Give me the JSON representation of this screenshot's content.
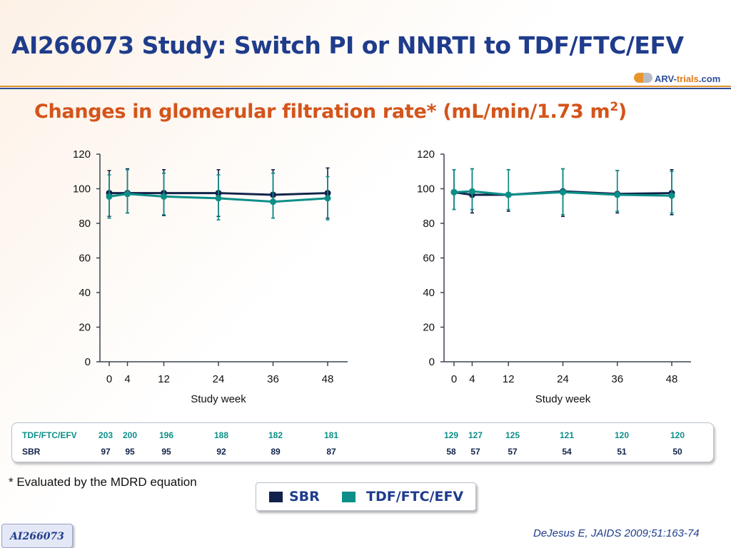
{
  "title": "AI266073 Study: Switch PI or NNRTI to TDF/FTC/EFV",
  "logo": {
    "main": "ARV-",
    "accent": "trials",
    "suffix": ".com"
  },
  "subtitle": {
    "text": "Changes in glomerular filtration rate* (mL/min/1.73 m",
    "sup": "2",
    "close": ")"
  },
  "colors": {
    "sbr": "#11234a",
    "tdf": "#0c8f88",
    "title": "#1f3c8c",
    "subtitle": "#d4541a"
  },
  "chart_data": [
    {
      "type": "line",
      "xlabel": "Study week",
      "ylabel": "",
      "ylim": [
        0,
        120
      ],
      "yticks": [
        0,
        20,
        40,
        60,
        80,
        100,
        120
      ],
      "x": [
        0,
        4,
        12,
        24,
        36,
        48
      ],
      "series": [
        {
          "name": "SBR",
          "values": [
            97.5,
            97.5,
            97.5,
            97.5,
            96.5,
            97.5
          ],
          "err_upper": [
            110.5,
            111.5,
            111,
            111,
            111,
            112
          ],
          "err_lower": [
            84,
            86,
            84.5,
            84,
            83,
            83
          ]
        },
        {
          "name": "TDF/FTC/EFV",
          "values": [
            95.5,
            97,
            95.5,
            94.5,
            92.5,
            94.5
          ],
          "err_upper": [
            108,
            111,
            109,
            108,
            109,
            107
          ],
          "err_lower": [
            83,
            86,
            85,
            82,
            83,
            82
          ]
        }
      ]
    },
    {
      "type": "line",
      "xlabel": "Study week",
      "ylabel": "",
      "ylim": [
        0,
        120
      ],
      "yticks": [
        0,
        20,
        40,
        60,
        80,
        100,
        120
      ],
      "x": [
        0,
        4,
        12,
        24,
        36,
        48
      ],
      "series": [
        {
          "name": "SBR",
          "values": [
            98,
            96.5,
            96.5,
            98.5,
            97,
            97.5
          ],
          "err_upper": [
            111,
            111.5,
            111,
            111.5,
            110.5,
            111
          ],
          "err_lower": [
            88,
            86,
            87,
            84,
            86,
            85
          ]
        },
        {
          "name": "TDF/FTC/EFV",
          "values": [
            98,
            98.5,
            96.5,
            98,
            96.5,
            96
          ],
          "err_upper": [
            111,
            111.5,
            111,
            111.5,
            110.5,
            110
          ],
          "err_lower": [
            88,
            88,
            88,
            85,
            87,
            86
          ]
        }
      ]
    }
  ],
  "n_table": {
    "rows": [
      {
        "label": "TDF/FTC/EFV",
        "left": [
          "203",
          "200",
          "196",
          "188",
          "182",
          "181"
        ],
        "right": [
          "129",
          "127",
          "125",
          "121",
          "120",
          "120"
        ]
      },
      {
        "label": "SBR",
        "left": [
          "97",
          "95",
          "95",
          "92",
          "89",
          "87"
        ],
        "right": [
          "58",
          "57",
          "57",
          "54",
          "51",
          "50"
        ]
      }
    ]
  },
  "footnote": "* Evaluated by the MDRD equation",
  "legend": {
    "sbr": "SBR",
    "tdf": "TDF/FTC/EFV"
  },
  "citation": "DeJesus E, JAIDS 2009;51:163-74",
  "badge": "AI266073"
}
